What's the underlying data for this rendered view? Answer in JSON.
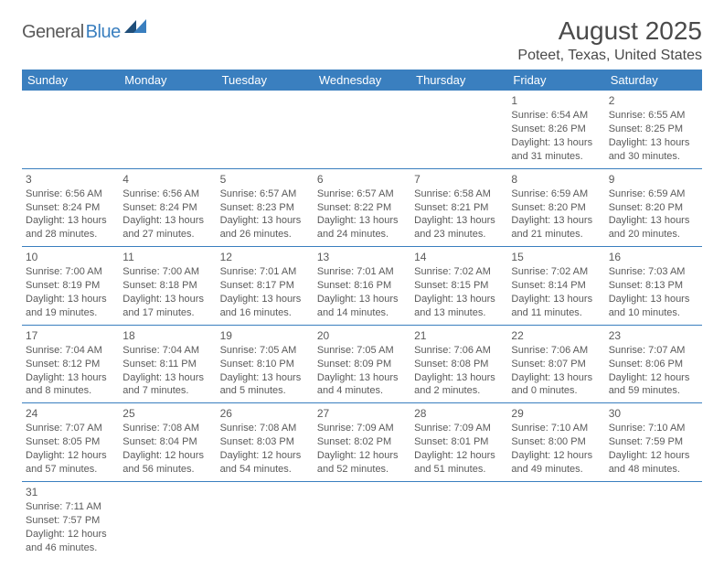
{
  "logo": {
    "part1": "General",
    "part2": "Blue"
  },
  "title": "August 2025",
  "location": "Poteet, Texas, United States",
  "colors": {
    "header_bg": "#3a7fbf",
    "header_text": "#ffffff",
    "border": "#3a7fbf",
    "body_text": "#5a5a5a",
    "title_text": "#4a4a4a",
    "page_bg": "#ffffff"
  },
  "weekdays": [
    "Sunday",
    "Monday",
    "Tuesday",
    "Wednesday",
    "Thursday",
    "Friday",
    "Saturday"
  ],
  "weeks": [
    [
      null,
      null,
      null,
      null,
      null,
      {
        "n": "1",
        "sr": "Sunrise: 6:54 AM",
        "ss": "Sunset: 8:26 PM",
        "d1": "Daylight: 13 hours",
        "d2": "and 31 minutes."
      },
      {
        "n": "2",
        "sr": "Sunrise: 6:55 AM",
        "ss": "Sunset: 8:25 PM",
        "d1": "Daylight: 13 hours",
        "d2": "and 30 minutes."
      }
    ],
    [
      {
        "n": "3",
        "sr": "Sunrise: 6:56 AM",
        "ss": "Sunset: 8:24 PM",
        "d1": "Daylight: 13 hours",
        "d2": "and 28 minutes."
      },
      {
        "n": "4",
        "sr": "Sunrise: 6:56 AM",
        "ss": "Sunset: 8:24 PM",
        "d1": "Daylight: 13 hours",
        "d2": "and 27 minutes."
      },
      {
        "n": "5",
        "sr": "Sunrise: 6:57 AM",
        "ss": "Sunset: 8:23 PM",
        "d1": "Daylight: 13 hours",
        "d2": "and 26 minutes."
      },
      {
        "n": "6",
        "sr": "Sunrise: 6:57 AM",
        "ss": "Sunset: 8:22 PM",
        "d1": "Daylight: 13 hours",
        "d2": "and 24 minutes."
      },
      {
        "n": "7",
        "sr": "Sunrise: 6:58 AM",
        "ss": "Sunset: 8:21 PM",
        "d1": "Daylight: 13 hours",
        "d2": "and 23 minutes."
      },
      {
        "n": "8",
        "sr": "Sunrise: 6:59 AM",
        "ss": "Sunset: 8:20 PM",
        "d1": "Daylight: 13 hours",
        "d2": "and 21 minutes."
      },
      {
        "n": "9",
        "sr": "Sunrise: 6:59 AM",
        "ss": "Sunset: 8:20 PM",
        "d1": "Daylight: 13 hours",
        "d2": "and 20 minutes."
      }
    ],
    [
      {
        "n": "10",
        "sr": "Sunrise: 7:00 AM",
        "ss": "Sunset: 8:19 PM",
        "d1": "Daylight: 13 hours",
        "d2": "and 19 minutes."
      },
      {
        "n": "11",
        "sr": "Sunrise: 7:00 AM",
        "ss": "Sunset: 8:18 PM",
        "d1": "Daylight: 13 hours",
        "d2": "and 17 minutes."
      },
      {
        "n": "12",
        "sr": "Sunrise: 7:01 AM",
        "ss": "Sunset: 8:17 PM",
        "d1": "Daylight: 13 hours",
        "d2": "and 16 minutes."
      },
      {
        "n": "13",
        "sr": "Sunrise: 7:01 AM",
        "ss": "Sunset: 8:16 PM",
        "d1": "Daylight: 13 hours",
        "d2": "and 14 minutes."
      },
      {
        "n": "14",
        "sr": "Sunrise: 7:02 AM",
        "ss": "Sunset: 8:15 PM",
        "d1": "Daylight: 13 hours",
        "d2": "and 13 minutes."
      },
      {
        "n": "15",
        "sr": "Sunrise: 7:02 AM",
        "ss": "Sunset: 8:14 PM",
        "d1": "Daylight: 13 hours",
        "d2": "and 11 minutes."
      },
      {
        "n": "16",
        "sr": "Sunrise: 7:03 AM",
        "ss": "Sunset: 8:13 PM",
        "d1": "Daylight: 13 hours",
        "d2": "and 10 minutes."
      }
    ],
    [
      {
        "n": "17",
        "sr": "Sunrise: 7:04 AM",
        "ss": "Sunset: 8:12 PM",
        "d1": "Daylight: 13 hours",
        "d2": "and 8 minutes."
      },
      {
        "n": "18",
        "sr": "Sunrise: 7:04 AM",
        "ss": "Sunset: 8:11 PM",
        "d1": "Daylight: 13 hours",
        "d2": "and 7 minutes."
      },
      {
        "n": "19",
        "sr": "Sunrise: 7:05 AM",
        "ss": "Sunset: 8:10 PM",
        "d1": "Daylight: 13 hours",
        "d2": "and 5 minutes."
      },
      {
        "n": "20",
        "sr": "Sunrise: 7:05 AM",
        "ss": "Sunset: 8:09 PM",
        "d1": "Daylight: 13 hours",
        "d2": "and 4 minutes."
      },
      {
        "n": "21",
        "sr": "Sunrise: 7:06 AM",
        "ss": "Sunset: 8:08 PM",
        "d1": "Daylight: 13 hours",
        "d2": "and 2 minutes."
      },
      {
        "n": "22",
        "sr": "Sunrise: 7:06 AM",
        "ss": "Sunset: 8:07 PM",
        "d1": "Daylight: 13 hours",
        "d2": "and 0 minutes."
      },
      {
        "n": "23",
        "sr": "Sunrise: 7:07 AM",
        "ss": "Sunset: 8:06 PM",
        "d1": "Daylight: 12 hours",
        "d2": "and 59 minutes."
      }
    ],
    [
      {
        "n": "24",
        "sr": "Sunrise: 7:07 AM",
        "ss": "Sunset: 8:05 PM",
        "d1": "Daylight: 12 hours",
        "d2": "and 57 minutes."
      },
      {
        "n": "25",
        "sr": "Sunrise: 7:08 AM",
        "ss": "Sunset: 8:04 PM",
        "d1": "Daylight: 12 hours",
        "d2": "and 56 minutes."
      },
      {
        "n": "26",
        "sr": "Sunrise: 7:08 AM",
        "ss": "Sunset: 8:03 PM",
        "d1": "Daylight: 12 hours",
        "d2": "and 54 minutes."
      },
      {
        "n": "27",
        "sr": "Sunrise: 7:09 AM",
        "ss": "Sunset: 8:02 PM",
        "d1": "Daylight: 12 hours",
        "d2": "and 52 minutes."
      },
      {
        "n": "28",
        "sr": "Sunrise: 7:09 AM",
        "ss": "Sunset: 8:01 PM",
        "d1": "Daylight: 12 hours",
        "d2": "and 51 minutes."
      },
      {
        "n": "29",
        "sr": "Sunrise: 7:10 AM",
        "ss": "Sunset: 8:00 PM",
        "d1": "Daylight: 12 hours",
        "d2": "and 49 minutes."
      },
      {
        "n": "30",
        "sr": "Sunrise: 7:10 AM",
        "ss": "Sunset: 7:59 PM",
        "d1": "Daylight: 12 hours",
        "d2": "and 48 minutes."
      }
    ],
    [
      {
        "n": "31",
        "sr": "Sunrise: 7:11 AM",
        "ss": "Sunset: 7:57 PM",
        "d1": "Daylight: 12 hours",
        "d2": "and 46 minutes."
      },
      null,
      null,
      null,
      null,
      null,
      null
    ]
  ]
}
